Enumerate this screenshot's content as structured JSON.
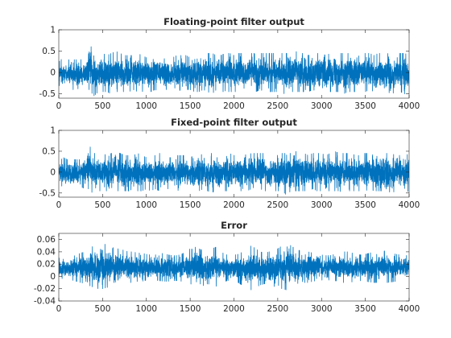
{
  "accent_color": "#0072BD",
  "chart_data": [
    {
      "type": "line",
      "title": "Floating-point filter output",
      "xlabel": "",
      "ylabel": "",
      "xlim": [
        0,
        4000
      ],
      "ylim": [
        -0.6,
        1
      ],
      "xticks": [
        "0",
        "500",
        "1000",
        "1500",
        "2000",
        "2500",
        "3000",
        "3500",
        "4000"
      ],
      "yticks": [
        "-0.5",
        "0",
        "0.5",
        "1"
      ],
      "grid": false,
      "series": [
        {
          "color": "#0072BD",
          "x": [
            0,
            50,
            100,
            150,
            200,
            250,
            300,
            350,
            400,
            450,
            500,
            550,
            600,
            650,
            700,
            750,
            800,
            850,
            900,
            950,
            1000,
            1050,
            1100,
            1150,
            1200,
            1250,
            1300,
            1350,
            1400,
            1450,
            1500,
            1550,
            1600,
            1650,
            1700,
            1750,
            1800,
            1850,
            1900,
            1950,
            2000,
            2050,
            2100,
            2150,
            2200,
            2250,
            2300,
            2350,
            2400,
            2450,
            2500,
            2550,
            2600,
            2650,
            2700,
            2750,
            2800,
            2850,
            2900,
            2950,
            3000,
            3050,
            3100,
            3150,
            3200,
            3250,
            3300,
            3350,
            3400,
            3450,
            3500,
            3550,
            3600,
            3650,
            3700,
            3750,
            3800,
            3850,
            3900,
            3950,
            4000
          ],
          "y_envelope_upper": [
            0.25,
            0.35,
            0.3,
            0.3,
            0.3,
            0.3,
            0.35,
            0.7,
            0.45,
            0.45,
            0.45,
            0.4,
            0.45,
            0.5,
            0.45,
            0.4,
            0.4,
            0.4,
            0.45,
            0.4,
            0.35,
            0.4,
            0.4,
            0.45,
            0.4,
            0.35,
            0.35,
            0.4,
            0.4,
            0.4,
            0.35,
            0.4,
            0.45,
            0.4,
            0.45,
            0.45,
            0.4,
            0.4,
            0.45,
            0.45,
            0.4,
            0.45,
            0.45,
            0.4,
            0.45,
            0.45,
            0.45,
            0.45,
            0.45,
            0.45,
            0.4,
            0.45,
            0.45,
            0.45,
            0.5,
            0.45,
            0.45,
            0.4,
            0.45,
            0.45,
            0.45,
            0.4,
            0.45,
            0.5,
            0.45,
            0.45,
            0.45,
            0.4,
            0.45,
            0.45,
            0.45,
            0.45,
            0.4,
            0.45,
            0.45,
            0.45,
            0.4,
            0.45,
            0.45,
            0.45,
            0.4
          ],
          "y_envelope_lower": [
            -0.3,
            -0.35,
            -0.35,
            -0.4,
            -0.4,
            -0.35,
            -0.4,
            -0.4,
            -0.55,
            -0.45,
            -0.45,
            -0.45,
            -0.5,
            -0.45,
            -0.45,
            -0.45,
            -0.45,
            -0.4,
            -0.45,
            -0.45,
            -0.4,
            -0.45,
            -0.4,
            -0.45,
            -0.4,
            -0.4,
            -0.4,
            -0.45,
            -0.4,
            -0.4,
            -0.4,
            -0.45,
            -0.45,
            -0.4,
            -0.45,
            -0.5,
            -0.4,
            -0.45,
            -0.45,
            -0.45,
            -0.45,
            -0.45,
            -0.45,
            -0.45,
            -0.4,
            -0.45,
            -0.4,
            -0.45,
            -0.45,
            -0.45,
            -0.45,
            -0.45,
            -0.55,
            -0.45,
            -0.45,
            -0.45,
            -0.45,
            -0.45,
            -0.4,
            -0.45,
            -0.45,
            -0.45,
            -0.45,
            -0.45,
            -0.45,
            -0.5,
            -0.45,
            -0.45,
            -0.45,
            -0.45,
            -0.45,
            -0.4,
            -0.45,
            -0.45,
            -0.45,
            -0.45,
            -0.5,
            -0.45,
            -0.45,
            -0.5,
            -0.45
          ]
        }
      ]
    },
    {
      "type": "line",
      "title": "Fixed-point filter output",
      "xlabel": "",
      "ylabel": "",
      "xlim": [
        0,
        4000
      ],
      "ylim": [
        -0.6,
        1
      ],
      "xticks": [
        "0",
        "500",
        "1000",
        "1500",
        "2000",
        "2500",
        "3000",
        "3500",
        "4000"
      ],
      "yticks": [
        "-0.5",
        "0",
        "0.5",
        "1"
      ],
      "grid": false,
      "series": [
        {
          "color": "#0072BD",
          "x": [
            0,
            50,
            100,
            150,
            200,
            250,
            300,
            350,
            400,
            450,
            500,
            550,
            600,
            650,
            700,
            750,
            800,
            850,
            900,
            950,
            1000,
            1050,
            1100,
            1150,
            1200,
            1250,
            1300,
            1350,
            1400,
            1450,
            1500,
            1550,
            1600,
            1650,
            1700,
            1750,
            1800,
            1850,
            1900,
            1950,
            2000,
            2050,
            2100,
            2150,
            2200,
            2250,
            2300,
            2350,
            2400,
            2450,
            2500,
            2550,
            2600,
            2650,
            2700,
            2750,
            2800,
            2850,
            2900,
            2950,
            3000,
            3050,
            3100,
            3150,
            3200,
            3250,
            3300,
            3350,
            3400,
            3450,
            3500,
            3550,
            3600,
            3650,
            3700,
            3750,
            3800,
            3850,
            3900,
            3950,
            4000
          ],
          "y_envelope_upper": [
            0.25,
            0.35,
            0.3,
            0.3,
            0.3,
            0.3,
            0.35,
            0.7,
            0.45,
            0.45,
            0.45,
            0.4,
            0.45,
            0.5,
            0.45,
            0.4,
            0.4,
            0.4,
            0.45,
            0.4,
            0.35,
            0.4,
            0.4,
            0.45,
            0.4,
            0.35,
            0.35,
            0.4,
            0.4,
            0.4,
            0.35,
            0.4,
            0.45,
            0.4,
            0.45,
            0.45,
            0.4,
            0.4,
            0.45,
            0.45,
            0.4,
            0.45,
            0.45,
            0.4,
            0.45,
            0.45,
            0.45,
            0.45,
            0.45,
            0.45,
            0.4,
            0.45,
            0.45,
            0.45,
            0.5,
            0.45,
            0.45,
            0.4,
            0.45,
            0.45,
            0.45,
            0.4,
            0.45,
            0.5,
            0.45,
            0.45,
            0.45,
            0.4,
            0.45,
            0.45,
            0.45,
            0.45,
            0.4,
            0.45,
            0.45,
            0.45,
            0.4,
            0.45,
            0.45,
            0.45,
            0.4
          ],
          "y_envelope_lower": [
            -0.3,
            -0.35,
            -0.35,
            -0.4,
            -0.4,
            -0.35,
            -0.4,
            -0.4,
            -0.55,
            -0.45,
            -0.45,
            -0.45,
            -0.5,
            -0.45,
            -0.45,
            -0.45,
            -0.45,
            -0.4,
            -0.45,
            -0.45,
            -0.4,
            -0.45,
            -0.4,
            -0.45,
            -0.4,
            -0.4,
            -0.4,
            -0.45,
            -0.4,
            -0.4,
            -0.4,
            -0.45,
            -0.45,
            -0.4,
            -0.45,
            -0.5,
            -0.4,
            -0.45,
            -0.45,
            -0.45,
            -0.45,
            -0.45,
            -0.45,
            -0.45,
            -0.4,
            -0.45,
            -0.4,
            -0.45,
            -0.45,
            -0.45,
            -0.45,
            -0.45,
            -0.55,
            -0.45,
            -0.45,
            -0.45,
            -0.45,
            -0.45,
            -0.4,
            -0.45,
            -0.45,
            -0.45,
            -0.45,
            -0.45,
            -0.45,
            -0.5,
            -0.45,
            -0.45,
            -0.45,
            -0.45,
            -0.45,
            -0.4,
            -0.45,
            -0.45,
            -0.45,
            -0.45,
            -0.5,
            -0.45,
            -0.45,
            -0.5,
            -0.45
          ]
        }
      ]
    },
    {
      "type": "line",
      "title": "Error",
      "xlabel": "",
      "ylabel": "",
      "xlim": [
        0,
        4000
      ],
      "ylim": [
        -0.04,
        0.07
      ],
      "xticks": [
        "0",
        "500",
        "1000",
        "1500",
        "2000",
        "2500",
        "3000",
        "3500",
        "4000"
      ],
      "yticks": [
        "-0.04",
        "-0.02",
        "0",
        "0.02",
        "0.04",
        "0.06"
      ],
      "grid": false,
      "series": [
        {
          "color": "#0072BD",
          "x": [
            0,
            50,
            100,
            150,
            200,
            250,
            300,
            350,
            400,
            450,
            500,
            550,
            600,
            650,
            700,
            750,
            800,
            850,
            900,
            950,
            1000,
            1050,
            1100,
            1150,
            1200,
            1250,
            1300,
            1350,
            1400,
            1450,
            1500,
            1550,
            1600,
            1650,
            1700,
            1750,
            1800,
            1850,
            1900,
            1950,
            2000,
            2050,
            2100,
            2150,
            2200,
            2250,
            2300,
            2350,
            2400,
            2450,
            2500,
            2550,
            2600,
            2650,
            2700,
            2750,
            2800,
            2850,
            2900,
            2950,
            3000,
            3050,
            3100,
            3150,
            3200,
            3250,
            3300,
            3350,
            3400,
            3450,
            3500,
            3550,
            3600,
            3650,
            3700,
            3750,
            3800,
            3850,
            3900,
            3950,
            4000
          ],
          "y_envelope_upper": [
            0.03,
            0.028,
            0.03,
            0.032,
            0.035,
            0.038,
            0.04,
            0.045,
            0.05,
            0.05,
            0.055,
            0.05,
            0.048,
            0.045,
            0.045,
            0.042,
            0.04,
            0.04,
            0.038,
            0.038,
            0.036,
            0.035,
            0.035,
            0.036,
            0.038,
            0.035,
            0.034,
            0.034,
            0.036,
            0.04,
            0.045,
            0.048,
            0.045,
            0.042,
            0.04,
            0.045,
            0.048,
            0.04,
            0.036,
            0.034,
            0.035,
            0.036,
            0.04,
            0.045,
            0.05,
            0.045,
            0.04,
            0.038,
            0.04,
            0.042,
            0.045,
            0.05,
            0.055,
            0.05,
            0.045,
            0.042,
            0.04,
            0.04,
            0.038,
            0.036,
            0.035,
            0.034,
            0.034,
            0.036,
            0.038,
            0.04,
            0.04,
            0.038,
            0.036,
            0.035,
            0.036,
            0.038,
            0.04,
            0.04,
            0.042,
            0.04,
            0.038,
            0.036,
            0.035,
            0.034,
            0.034
          ],
          "y_envelope_lower": [
            -0.002,
            -0.004,
            -0.005,
            -0.006,
            -0.008,
            -0.01,
            -0.012,
            -0.015,
            -0.018,
            -0.02,
            -0.02,
            -0.018,
            -0.016,
            -0.015,
            -0.014,
            -0.012,
            -0.01,
            -0.01,
            -0.008,
            -0.008,
            -0.006,
            -0.006,
            -0.006,
            -0.007,
            -0.008,
            -0.008,
            -0.007,
            -0.007,
            -0.008,
            -0.01,
            -0.012,
            -0.015,
            -0.018,
            -0.015,
            -0.012,
            -0.014,
            -0.016,
            -0.012,
            -0.008,
            -0.006,
            -0.008,
            -0.01,
            -0.015,
            -0.02,
            -0.022,
            -0.018,
            -0.014,
            -0.012,
            -0.014,
            -0.016,
            -0.018,
            -0.02,
            -0.022,
            -0.018,
            -0.015,
            -0.012,
            -0.01,
            -0.01,
            -0.008,
            -0.007,
            -0.006,
            -0.006,
            -0.006,
            -0.007,
            -0.008,
            -0.01,
            -0.01,
            -0.009,
            -0.008,
            -0.007,
            -0.008,
            -0.009,
            -0.01,
            -0.01,
            -0.012,
            -0.01,
            -0.009,
            -0.008,
            -0.007,
            -0.006,
            -0.006
          ]
        }
      ]
    }
  ]
}
